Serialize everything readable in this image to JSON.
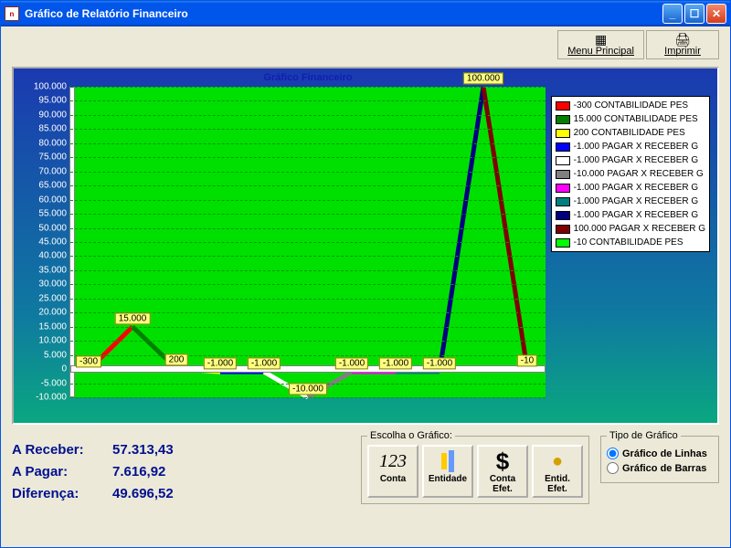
{
  "window": {
    "title": "Gráfico de Relatório Financeiro"
  },
  "toolbar": {
    "menu_label": "Menu Principal",
    "imprimir_label": "Imprimir"
  },
  "chart": {
    "title": "Gráfico Financeiro",
    "background_color": "#00e000",
    "grid_color": "#009a00",
    "ylim": [
      -10000,
      100000
    ],
    "ytick_step": 5000,
    "ytick_format": "dot-thousand",
    "points": [
      {
        "label": "-300",
        "value": -300,
        "color": "#ff0000"
      },
      {
        "label": "15.000",
        "value": 15000,
        "color": "#008000"
      },
      {
        "label": "200",
        "value": 200,
        "color": "#ffff00"
      },
      {
        "label": "-1.000",
        "value": -1000,
        "color": "#0000ff"
      },
      {
        "label": "-1.000",
        "value": -1000,
        "color": "#ffffff"
      },
      {
        "label": "-10.000",
        "value": -10000,
        "color": "#808080"
      },
      {
        "label": "-1.000",
        "value": -1000,
        "color": "#ff00ff"
      },
      {
        "label": "-1.000",
        "value": -1000,
        "color": "#008080"
      },
      {
        "label": "-1.000",
        "value": -1000,
        "color": "#000080"
      },
      {
        "label": "100.000",
        "value": 100000,
        "color": "#800000"
      },
      {
        "label": "-10",
        "value": -10,
        "color": "#00ff00"
      }
    ],
    "line_width": 5,
    "legend": [
      {
        "color": "#ff0000",
        "label": "-300 CONTABILIDADE PES"
      },
      {
        "color": "#008000",
        "label": "15.000 CONTABILIDADE PES"
      },
      {
        "color": "#ffff00",
        "label": "200 CONTABILIDADE PES"
      },
      {
        "color": "#0000ff",
        "label": "-1.000 PAGAR X RECEBER G"
      },
      {
        "color": "#ffffff",
        "label": "-1.000 PAGAR X RECEBER G"
      },
      {
        "color": "#808080",
        "label": "-10.000 PAGAR X RECEBER G"
      },
      {
        "color": "#ff00ff",
        "label": "-1.000 PAGAR X RECEBER G"
      },
      {
        "color": "#008080",
        "label": "-1.000 PAGAR X RECEBER G"
      },
      {
        "color": "#000080",
        "label": "-1.000 PAGAR X RECEBER G"
      },
      {
        "color": "#800000",
        "label": "100.000 PAGAR X RECEBER G"
      },
      {
        "color": "#00ff00",
        "label": "-10 CONTABILIDADE PES"
      }
    ]
  },
  "summary": {
    "receber_label": "A Receber:",
    "receber_value": "57.313,43",
    "pagar_label": "A Pagar:",
    "pagar_value": "7.616,92",
    "diferenca_label": "Diferença:",
    "diferenca_value": "49.696,52"
  },
  "chooser": {
    "legend": "Escolha o Gráfico:",
    "buttons": [
      {
        "icon": "123",
        "label": "Conta"
      },
      {
        "icon": "bars",
        "label": "Entidade"
      },
      {
        "icon": "$",
        "label": "Conta Efet."
      },
      {
        "icon": "coin",
        "label": "Entid. Efet."
      }
    ]
  },
  "chart_type": {
    "legend": "Tipo de Gráfico",
    "linhas_label": "Gráfico de Linhas",
    "barras_label": "Gráfico de Barras",
    "selected": "linhas"
  }
}
